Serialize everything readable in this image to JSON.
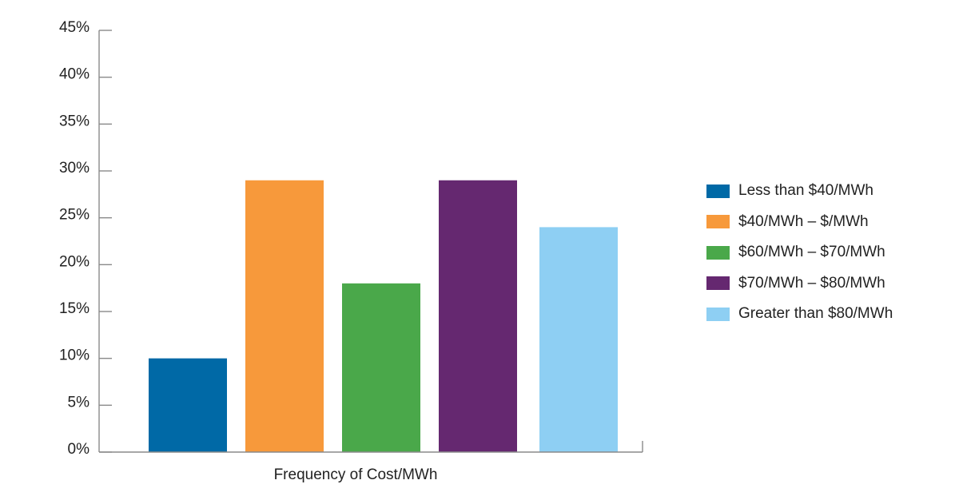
{
  "chart_data": {
    "type": "bar",
    "title": "",
    "xlabel": "Frequency of Cost/MWh",
    "ylabel": "",
    "ylim": [
      0,
      45
    ],
    "yticks": [
      "0%",
      "5%",
      "10%",
      "15%",
      "20%",
      "25%",
      "30%",
      "35%",
      "40%",
      "45%"
    ],
    "grid": false,
    "legend_position": "right",
    "series": [
      {
        "name": "Less than $40/MWh",
        "value": 10,
        "color": "#0069a6"
      },
      {
        "name": "$40/MWh – $/MWh",
        "value": 29,
        "color": "#f7993b"
      },
      {
        "name": "$60/MWh – $70/MWh",
        "value": 18,
        "color": "#4aa84a"
      },
      {
        "name": "$70/MWh – $80/MWh",
        "value": 29,
        "color": "#652870"
      },
      {
        "name": "Greater than $80/MWh",
        "value": 24,
        "color": "#8ecff3"
      }
    ]
  }
}
